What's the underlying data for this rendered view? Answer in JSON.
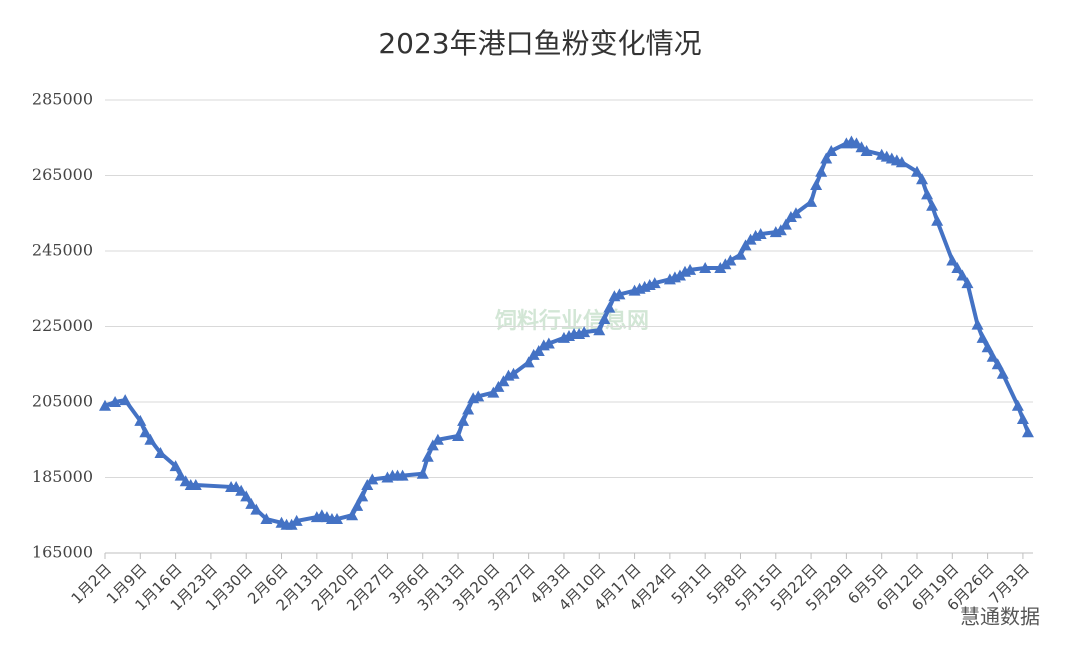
{
  "chart_data": {
    "type": "line",
    "title": "2023年港口鱼粉变化情况",
    "watermarks": [
      "饲料行业信息网",
      "慧通数据"
    ],
    "xlim": [
      0,
      184
    ],
    "xticks": [
      {
        "value": 0,
        "label": "1月2日"
      },
      {
        "value": 7,
        "label": "1月9日"
      },
      {
        "value": 14,
        "label": "1月16日"
      },
      {
        "value": 21,
        "label": "1月23日"
      },
      {
        "value": 28,
        "label": "1月30日"
      },
      {
        "value": 35,
        "label": "2月6日"
      },
      {
        "value": 42,
        "label": "2月13日"
      },
      {
        "value": 49,
        "label": "2月20日"
      },
      {
        "value": 56,
        "label": "2月27日"
      },
      {
        "value": 63,
        "label": "3月6日"
      },
      {
        "value": 70,
        "label": "3月13日"
      },
      {
        "value": 77,
        "label": "3月20日"
      },
      {
        "value": 84,
        "label": "3月27日"
      },
      {
        "value": 91,
        "label": "4月3日"
      },
      {
        "value": 98,
        "label": "4月10日"
      },
      {
        "value": 105,
        "label": "4月17日"
      },
      {
        "value": 112,
        "label": "4月24日"
      },
      {
        "value": 119,
        "label": "5月1日"
      },
      {
        "value": 126,
        "label": "5月8日"
      },
      {
        "value": 133,
        "label": "5月15日"
      },
      {
        "value": 140,
        "label": "5月22日"
      },
      {
        "value": 147,
        "label": "5月29日"
      },
      {
        "value": 154,
        "label": "6月5日"
      },
      {
        "value": 161,
        "label": "6月12日"
      },
      {
        "value": 168,
        "label": "6月19日"
      },
      {
        "value": 175,
        "label": "6月26日"
      },
      {
        "value": 182,
        "label": "7月3日"
      }
    ],
    "ylim": [
      165000,
      285000
    ],
    "yticks": [
      165000,
      185000,
      205000,
      225000,
      245000,
      265000,
      285000
    ],
    "grid": true,
    "x": [
      0,
      2,
      4,
      7,
      8,
      9,
      11,
      14,
      15,
      16,
      17,
      18,
      25,
      26,
      27,
      28,
      29,
      30,
      32,
      35,
      36,
      37,
      38,
      42,
      43,
      44,
      45,
      46,
      49,
      50,
      51,
      52,
      53,
      56,
      57,
      58,
      59,
      63,
      64,
      65,
      66,
      70,
      71,
      72,
      73,
      74,
      77,
      78,
      79,
      80,
      81,
      84,
      85,
      86,
      87,
      88,
      91,
      92,
      93,
      94,
      95,
      98,
      99,
      100,
      101,
      102,
      105,
      106,
      107,
      108,
      109,
      112,
      113,
      114,
      115,
      116,
      119,
      122,
      123,
      124,
      126,
      127,
      128,
      129,
      130,
      133,
      134,
      135,
      136,
      137,
      140,
      141,
      142,
      143,
      144,
      147,
      148,
      149,
      150,
      151,
      154,
      155,
      156,
      157,
      158,
      161,
      162,
      163,
      164,
      165,
      168,
      169,
      170,
      171,
      173,
      174,
      175,
      176,
      177,
      178,
      181,
      182,
      183
    ],
    "series": [
      {
        "name": "港口鱼粉",
        "color": "#4472c4",
        "values": [
          204000,
          205000,
          205500,
          200000,
          197000,
          195000,
          191500,
          188000,
          185500,
          184000,
          183000,
          183000,
          182500,
          182500,
          181500,
          180000,
          178000,
          176500,
          174000,
          173000,
          172500,
          172500,
          173500,
          174500,
          175000,
          174500,
          174000,
          174000,
          175000,
          177500,
          180000,
          183000,
          184500,
          185000,
          185500,
          185500,
          185500,
          186000,
          190500,
          193500,
          195000,
          196000,
          200000,
          203000,
          206000,
          206500,
          207500,
          209000,
          210500,
          212000,
          212500,
          215500,
          217500,
          218500,
          220000,
          220500,
          222000,
          222500,
          223000,
          223000,
          223500,
          224000,
          227000,
          230000,
          233000,
          233500,
          234500,
          235000,
          235500,
          236000,
          236500,
          237500,
          238000,
          238500,
          239500,
          240000,
          240500,
          240500,
          241500,
          242500,
          244000,
          246500,
          248000,
          249000,
          249500,
          250000,
          250500,
          252000,
          254000,
          255000,
          258000,
          262500,
          266000,
          269500,
          271500,
          273500,
          274000,
          273500,
          272500,
          271500,
          270500,
          270000,
          269500,
          269000,
          268500,
          266000,
          264000,
          260000,
          257000,
          253000,
          242500,
          240500,
          238500,
          236500,
          225500,
          222000,
          219500,
          217000,
          215000,
          212500,
          204000,
          200500,
          197000
        ]
      }
    ]
  }
}
